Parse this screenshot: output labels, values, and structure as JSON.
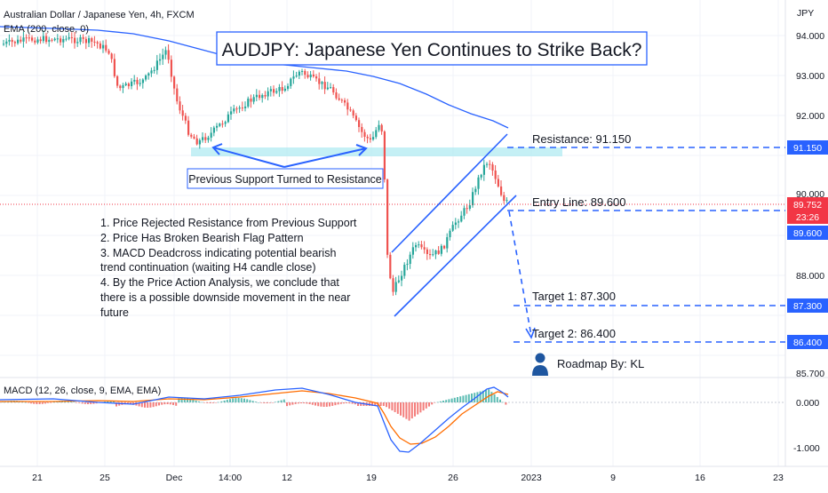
{
  "header": {
    "symbol": "Australian Dollar / Japanese Yen, 4h, FXCM",
    "indicator": "EMA (200, close, 0)"
  },
  "title": "AUDJPY: Japanese Yen Continues to Strike Back?",
  "price_axis": {
    "currency": "JPY",
    "ticks": [
      "94.000",
      "93.000",
      "92.000",
      "90.000",
      "88.000",
      "85.700"
    ],
    "macd_ticks": [
      "0.000",
      "-1.000"
    ]
  },
  "levels": {
    "resistance": {
      "label": "Resistance: 91.150",
      "tag": "91.150",
      "color": "#2962ff"
    },
    "entry": {
      "label": "Entry Line: 89.600",
      "tag": "89.600",
      "color": "#2962ff"
    },
    "target1": {
      "label": "Target 1: 87.300",
      "tag": "87.300",
      "color": "#2962ff"
    },
    "target2": {
      "label": "Target 2: 86.400",
      "tag": "86.400",
      "color": "#2962ff"
    },
    "current": {
      "price": "89.752",
      "countdown": "23:26",
      "color": "#f23645"
    }
  },
  "annotations": {
    "support_label": "Previous Support Turned to Resistance",
    "analysis": [
      "1. Price Rejected Resistance from Previous Support",
      "2. Price Has Broken Bearish Flag Pattern",
      "3. MACD Deadcross indicating potential bearish",
      "trend continuation (waiting H4 candle close)",
      "4. By the Price Action Analysis, we conclude that",
      "there is a possible downside movement in the near",
      "future"
    ],
    "author": "Roadmap By: KL"
  },
  "macd": {
    "label": "MACD (12, 26, close, 9, EMA, EMA)",
    "macd_color": "#2962ff",
    "signal_color": "#ff6d00"
  },
  "time_axis": {
    "labels": [
      "21",
      "25",
      "Dec",
      "14:00",
      "12",
      "19",
      "26",
      "2023",
      "9",
      "16",
      "23"
    ]
  },
  "chart_data": {
    "type": "candlestick",
    "ylim": [
      85.7,
      94.3
    ],
    "up_color": "#26a69a",
    "down_color": "#ef5350",
    "ema_color": "#2962ff",
    "approx_close_path": [
      {
        "x": "21",
        "y": 93.85
      },
      {
        "x": "25",
        "y": 93.5
      },
      {
        "x": "Dec",
        "y": 91.2
      },
      {
        "x": "14:00",
        "y": 92.0
      },
      {
        "x": "12",
        "y": 93.0
      },
      {
        "x": "19",
        "y": 91.8
      },
      {
        "x": "20",
        "y": 87.8
      },
      {
        "x": "26",
        "y": 89.8
      },
      {
        "x": "29",
        "y": 91.0
      },
      {
        "x": "30",
        "y": 89.75
      }
    ]
  }
}
